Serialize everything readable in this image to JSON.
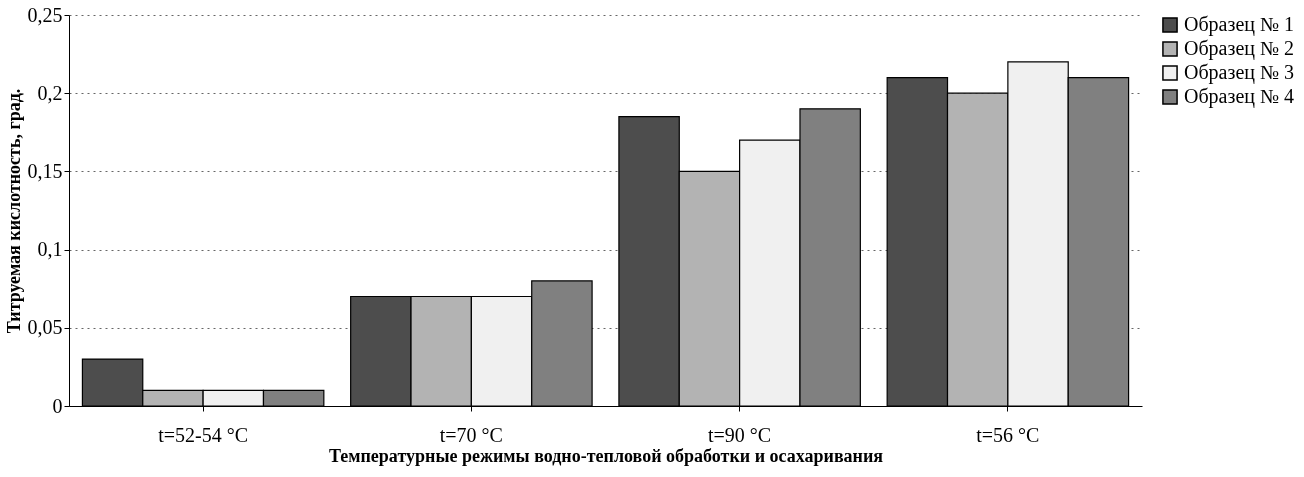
{
  "chart_data": {
    "type": "bar",
    "xlabel": "Температурные режимы водно-тепловой обработки и осахаривания",
    "ylabel": "Титруемая кислотность, град.",
    "categories": [
      "t=52-54 °C",
      "t=70 °C",
      "t=90 °C",
      "t=56 °C"
    ],
    "series": [
      {
        "name": "Образец № 1",
        "color": "#4d4d4d",
        "values": [
          0.03,
          0.07,
          0.185,
          0.21
        ]
      },
      {
        "name": "Образец № 2",
        "color": "#b3b3b3",
        "values": [
          0.01,
          0.07,
          0.15,
          0.2
        ]
      },
      {
        "name": "Образец № 3",
        "color": "#f0f0f0",
        "values": [
          0.01,
          0.07,
          0.17,
          0.22
        ]
      },
      {
        "name": "Образец № 4",
        "color": "#808080",
        "values": [
          0.01,
          0.08,
          0.19,
          0.21
        ]
      }
    ],
    "ylim": [
      0,
      0.25
    ],
    "yticks": [
      0,
      {
        "value": 0.05,
        "label": "0,05"
      },
      {
        "value": 0.1,
        "label": "0,1"
      },
      {
        "value": 0.15,
        "label": "0,15"
      },
      {
        "value": 0.2,
        "label": "0,2"
      },
      {
        "value": 0.25,
        "label": "0,25"
      }
    ],
    "grid": "y",
    "legend": "right"
  }
}
